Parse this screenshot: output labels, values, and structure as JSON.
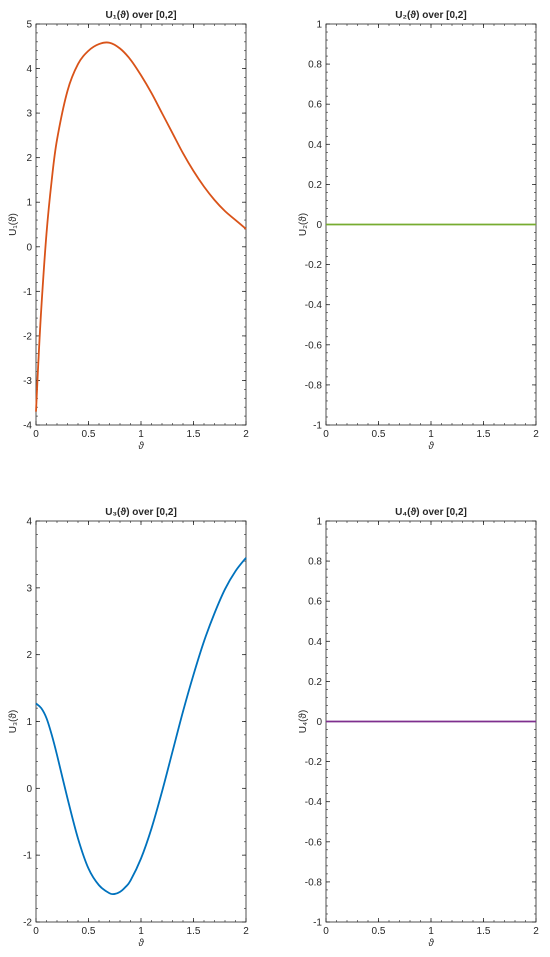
{
  "chart_data": [
    {
      "type": "line",
      "title": "U₁(ϑ)  over  [0,2]",
      "xlabel": "ϑ",
      "ylabel": "U₁(ϑ)",
      "xlim": [
        0,
        2
      ],
      "ylim": [
        -4,
        5
      ],
      "xticks": [
        "0",
        "0.5",
        "1",
        "1.5",
        "2"
      ],
      "yticks": [
        "-4",
        "-3",
        "-2",
        "-1",
        "0",
        "1",
        "2",
        "3",
        "4",
        "5"
      ],
      "grid": false,
      "color": "#d95319",
      "series": [
        {
          "x": [
            0,
            0.02,
            0.05,
            0.1,
            0.15,
            0.2,
            0.3,
            0.4,
            0.5,
            0.6,
            0.7,
            0.8,
            0.9,
            1.0,
            1.1,
            1.2,
            1.3,
            1.4,
            1.5,
            1.6,
            1.7,
            1.8,
            1.9,
            2.0
          ],
          "values": [
            -3.7,
            -2.7,
            -1.4,
            0.3,
            1.5,
            2.4,
            3.5,
            4.1,
            4.4,
            4.55,
            4.58,
            4.45,
            4.2,
            3.85,
            3.45,
            3.0,
            2.55,
            2.1,
            1.7,
            1.35,
            1.05,
            0.8,
            0.6,
            0.4
          ]
        }
      ]
    },
    {
      "type": "line",
      "title": "U₂(ϑ)  over  [0,2]",
      "xlabel": "ϑ",
      "ylabel": "U₂(ϑ)",
      "xlim": [
        0,
        2
      ],
      "ylim": [
        -1,
        1
      ],
      "xticks": [
        "0",
        "0.5",
        "1",
        "1.5",
        "2"
      ],
      "yticks": [
        "-1",
        "-0.8",
        "-0.6",
        "-0.4",
        "-0.2",
        "0",
        "0.2",
        "0.4",
        "0.6",
        "0.8",
        "1"
      ],
      "grid": false,
      "color": "#77ac30",
      "series": [
        {
          "x": [
            0,
            2
          ],
          "values": [
            0,
            0
          ]
        }
      ]
    },
    {
      "type": "line",
      "title": "U₃(ϑ)  over  [0,2]",
      "xlabel": "ϑ",
      "ylabel": "U₃(ϑ)",
      "xlim": [
        0,
        2
      ],
      "ylim": [
        -2,
        4
      ],
      "xticks": [
        "0",
        "0.5",
        "1",
        "1.5",
        "2"
      ],
      "yticks": [
        "-2",
        "-1",
        "0",
        "1",
        "2",
        "3",
        "4"
      ],
      "grid": false,
      "color": "#0072bd",
      "series": [
        {
          "x": [
            0,
            0.05,
            0.1,
            0.15,
            0.2,
            0.3,
            0.4,
            0.5,
            0.6,
            0.7,
            0.75,
            0.8,
            0.85,
            0.9,
            1.0,
            1.1,
            1.2,
            1.3,
            1.4,
            1.5,
            1.6,
            1.7,
            1.8,
            1.9,
            2.0
          ],
          "values": [
            1.27,
            1.2,
            1.05,
            0.8,
            0.5,
            -0.15,
            -0.75,
            -1.2,
            -1.45,
            -1.57,
            -1.58,
            -1.55,
            -1.48,
            -1.38,
            -1.05,
            -0.6,
            -0.05,
            0.55,
            1.15,
            1.7,
            2.2,
            2.62,
            2.98,
            3.25,
            3.45
          ]
        }
      ]
    },
    {
      "type": "line",
      "title": "U₄(ϑ)  over  [0,2]",
      "xlabel": "ϑ",
      "ylabel": "U₄(ϑ)",
      "xlim": [
        0,
        2
      ],
      "ylim": [
        -1,
        1
      ],
      "xticks": [
        "0",
        "0.5",
        "1",
        "1.5",
        "2"
      ],
      "yticks": [
        "-1",
        "-0.8",
        "-0.6",
        "-0.4",
        "-0.2",
        "0",
        "0.2",
        "0.4",
        "0.6",
        "0.8",
        "1"
      ],
      "grid": false,
      "color": "#7e2f8e",
      "series": [
        {
          "x": [
            0,
            2
          ],
          "values": [
            0,
            0
          ]
        }
      ]
    }
  ]
}
